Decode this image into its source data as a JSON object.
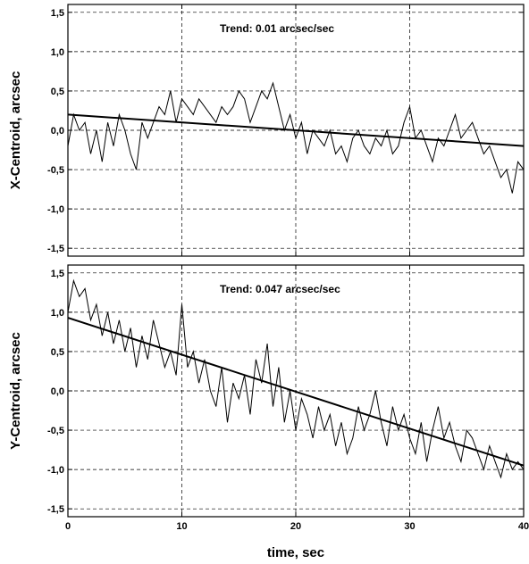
{
  "chart_data": [
    {
      "type": "line",
      "ylabel": "X-Centroid, arcsec",
      "annotation": "Trend: 0.01 arcsec/sec",
      "xlim": [
        0,
        40
      ],
      "ylim": [
        -1.6,
        1.6
      ],
      "xticks": [
        0,
        10,
        20,
        30,
        40
      ],
      "yticks": [
        -1.5,
        -1.0,
        -0.5,
        0.0,
        0.5,
        1.0,
        1.5
      ],
      "ytick_labels": [
        "-1,5",
        "-1,0",
        "-0,5",
        "0,0",
        "0,5",
        "1,0",
        "1,5"
      ],
      "grid": true,
      "series": [
        {
          "x": [
            0,
            0.5,
            1,
            1.5,
            2,
            2.5,
            3,
            3.5,
            4,
            4.5,
            5,
            5.5,
            6,
            6.5,
            7,
            7.5,
            8,
            8.5,
            9,
            9.5,
            10,
            10.5,
            11,
            11.5,
            12,
            12.5,
            13,
            13.5,
            14,
            14.5,
            15,
            15.5,
            16,
            16.5,
            17,
            17.5,
            18,
            18.5,
            19,
            19.5,
            20,
            20.5,
            21,
            21.5,
            22,
            22.5,
            23,
            23.5,
            24,
            24.5,
            25,
            25.5,
            26,
            26.5,
            27,
            27.5,
            28,
            28.5,
            29,
            29.5,
            30,
            30.5,
            31,
            31.5,
            32,
            32.5,
            33,
            33.5,
            34,
            34.5,
            35,
            35.5,
            36,
            36.5,
            37,
            37.5,
            38,
            38.5,
            39,
            39.5,
            40
          ],
          "y": [
            -0.2,
            0.2,
            0.0,
            0.1,
            -0.3,
            0.0,
            -0.4,
            0.1,
            -0.2,
            0.2,
            0.0,
            -0.3,
            -0.5,
            0.1,
            -0.1,
            0.1,
            0.3,
            0.2,
            0.5,
            0.1,
            0.4,
            0.3,
            0.2,
            0.4,
            0.3,
            0.2,
            0.1,
            0.3,
            0.2,
            0.3,
            0.5,
            0.4,
            0.1,
            0.3,
            0.5,
            0.4,
            0.6,
            0.3,
            0.0,
            0.2,
            -0.1,
            0.1,
            -0.3,
            0.0,
            -0.1,
            -0.2,
            0.0,
            -0.3,
            -0.2,
            -0.4,
            -0.1,
            0.0,
            -0.2,
            -0.3,
            -0.1,
            -0.2,
            0.0,
            -0.3,
            -0.2,
            0.1,
            0.3,
            -0.1,
            0.0,
            -0.2,
            -0.4,
            -0.1,
            -0.2,
            0.0,
            0.2,
            -0.1,
            0.0,
            0.1,
            -0.1,
            -0.3,
            -0.2,
            -0.4,
            -0.6,
            -0.5,
            -0.8,
            -0.4,
            -0.5
          ]
        },
        {
          "name": "Trend",
          "x": [
            0,
            40
          ],
          "y": [
            0.2,
            -0.2
          ]
        }
      ]
    },
    {
      "type": "line",
      "ylabel": "Y-Centroid, arcsec",
      "xlabel": "time, sec",
      "annotation": "Trend: 0.047 arcsec/sec",
      "xlim": [
        0,
        40
      ],
      "ylim": [
        -1.6,
        1.6
      ],
      "xticks": [
        0,
        10,
        20,
        30,
        40
      ],
      "xtick_labels": [
        "0",
        "10",
        "20",
        "30",
        "40"
      ],
      "yticks": [
        -1.5,
        -1.0,
        -0.5,
        0.0,
        0.5,
        1.0,
        1.5
      ],
      "ytick_labels": [
        "-1,5",
        "-1,0",
        "-0,5",
        "0,0",
        "0,5",
        "1,0",
        "1,5"
      ],
      "grid": true,
      "series": [
        {
          "x": [
            0,
            0.5,
            1,
            1.5,
            2,
            2.5,
            3,
            3.5,
            4,
            4.5,
            5,
            5.5,
            6,
            6.5,
            7,
            7.5,
            8,
            8.5,
            9,
            9.5,
            10,
            10.5,
            11,
            11.5,
            12,
            12.5,
            13,
            13.5,
            14,
            14.5,
            15,
            15.5,
            16,
            16.5,
            17,
            17.5,
            18,
            18.5,
            19,
            19.5,
            20,
            20.5,
            21,
            21.5,
            22,
            22.5,
            23,
            23.5,
            24,
            24.5,
            25,
            25.5,
            26,
            26.5,
            27,
            27.5,
            28,
            28.5,
            29,
            29.5,
            30,
            30.5,
            31,
            31.5,
            32,
            32.5,
            33,
            33.5,
            34,
            34.5,
            35,
            35.5,
            36,
            36.5,
            37,
            37.5,
            38,
            38.5,
            39,
            39.5,
            40
          ],
          "y": [
            1.0,
            1.4,
            1.2,
            1.3,
            0.9,
            1.1,
            0.7,
            1.0,
            0.6,
            0.9,
            0.5,
            0.8,
            0.3,
            0.7,
            0.4,
            0.9,
            0.6,
            0.3,
            0.5,
            0.2,
            1.1,
            0.3,
            0.5,
            0.1,
            0.4,
            0.0,
            -0.2,
            0.3,
            -0.4,
            0.1,
            -0.1,
            0.2,
            -0.3,
            0.4,
            0.1,
            0.6,
            -0.2,
            0.3,
            -0.4,
            0.0,
            -0.5,
            -0.1,
            -0.3,
            -0.6,
            -0.2,
            -0.5,
            -0.3,
            -0.7,
            -0.4,
            -0.8,
            -0.6,
            -0.2,
            -0.5,
            -0.3,
            0.0,
            -0.4,
            -0.7,
            -0.2,
            -0.5,
            -0.3,
            -0.6,
            -0.8,
            -0.4,
            -0.9,
            -0.5,
            -0.2,
            -0.6,
            -0.4,
            -0.7,
            -0.9,
            -0.5,
            -0.6,
            -0.8,
            -1.0,
            -0.7,
            -0.9,
            -1.1,
            -0.8,
            -1.0,
            -0.9,
            -1.0
          ]
        },
        {
          "name": "Trend",
          "x": [
            0,
            40
          ],
          "y": [
            0.93,
            -0.95
          ]
        }
      ]
    }
  ]
}
